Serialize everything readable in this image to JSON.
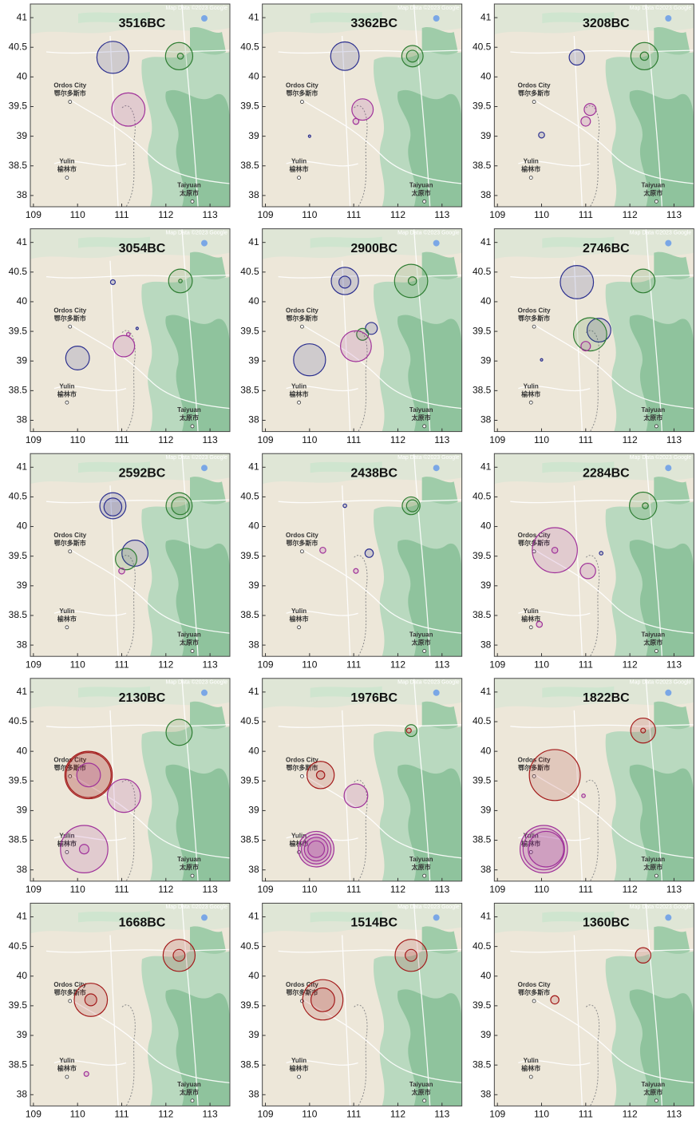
{
  "map": {
    "attribution": "Map Data ©2023 Google",
    "places": [
      {
        "name": "Ordos City",
        "local": "鄂尔多斯市",
        "x": 109.83,
        "y": 39.58
      },
      {
        "name": "Yulin",
        "local": "榆林市",
        "x": 109.76,
        "y": 38.3
      },
      {
        "name": "Taiyuan",
        "local": "太原市",
        "x": 112.6,
        "y": 37.9
      }
    ]
  },
  "chart_data": [
    {
      "type": "scatter",
      "title": "3516BC",
      "xlim": [
        108.93,
        113.45
      ],
      "ylim": [
        37.81,
        41.23
      ],
      "xticks": [
        109,
        110,
        111,
        112,
        113
      ],
      "yticks": [
        38,
        38.5,
        39,
        39.5,
        40,
        40.5,
        41
      ],
      "series": [
        {
          "color": "#2b2f8f",
          "x": [
            110.8
          ],
          "values": [
            40.33
          ],
          "sizes": [
            0.27
          ]
        },
        {
          "color": "#2e7d32",
          "x": [
            112.3,
            112.33
          ],
          "values": [
            40.35,
            40.35
          ],
          "sizes": [
            0.23,
            0.05
          ]
        },
        {
          "color": "#a0329a",
          "x": [
            111.15
          ],
          "values": [
            39.45
          ],
          "sizes": [
            0.28
          ]
        }
      ]
    },
    {
      "type": "scatter",
      "title": "3362BC",
      "xlim": [
        108.93,
        113.45
      ],
      "ylim": [
        37.81,
        41.23
      ],
      "xticks": [
        109,
        110,
        111,
        112,
        113
      ],
      "yticks": [
        38,
        38.5,
        39,
        39.5,
        40,
        40.5,
        41
      ],
      "series": [
        {
          "color": "#2b2f8f",
          "x": [
            110.8,
            110.0
          ],
          "values": [
            40.35,
            39.0
          ],
          "sizes": [
            0.24,
            0.02
          ]
        },
        {
          "color": "#2e7d32",
          "x": [
            112.33,
            112.33
          ],
          "values": [
            40.35,
            40.35
          ],
          "sizes": [
            0.18,
            0.1
          ]
        },
        {
          "color": "#a0329a",
          "x": [
            111.2,
            111.05
          ],
          "values": [
            39.45,
            39.25
          ],
          "sizes": [
            0.18,
            0.05
          ]
        }
      ]
    },
    {
      "type": "scatter",
      "title": "3208BC",
      "xlim": [
        108.93,
        113.45
      ],
      "ylim": [
        37.81,
        41.23
      ],
      "xticks": [
        109,
        110,
        111,
        112,
        113
      ],
      "yticks": [
        38,
        38.5,
        39,
        39.5,
        40,
        40.5,
        41
      ],
      "series": [
        {
          "color": "#2b2f8f",
          "x": [
            110.8,
            110.0
          ],
          "values": [
            40.33,
            39.02
          ],
          "sizes": [
            0.13,
            0.05
          ]
        },
        {
          "color": "#2e7d32",
          "x": [
            112.33,
            112.33
          ],
          "values": [
            40.35,
            40.35
          ],
          "sizes": [
            0.23,
            0.07
          ]
        },
        {
          "color": "#a0329a",
          "x": [
            111.1,
            111.0
          ],
          "values": [
            39.45,
            39.25
          ],
          "sizes": [
            0.1,
            0.08
          ]
        }
      ]
    },
    {
      "type": "scatter",
      "title": "3054BC",
      "xlim": [
        108.93,
        113.45
      ],
      "ylim": [
        37.81,
        41.23
      ],
      "xticks": [
        109,
        110,
        111,
        112,
        113
      ],
      "yticks": [
        38,
        38.5,
        39,
        39.5,
        40,
        40.5,
        41
      ],
      "series": [
        {
          "color": "#2b2f8f",
          "x": [
            110.8,
            110.0,
            111.35
          ],
          "values": [
            40.33,
            39.05,
            39.55
          ],
          "sizes": [
            0.04,
            0.2,
            0.02
          ]
        },
        {
          "color": "#2e7d32",
          "x": [
            112.33,
            112.33
          ],
          "values": [
            40.35,
            40.35
          ],
          "sizes": [
            0.2,
            0.03
          ]
        },
        {
          "color": "#a0329a",
          "x": [
            111.05,
            111.15
          ],
          "values": [
            39.25,
            39.45
          ],
          "sizes": [
            0.18,
            0.03
          ]
        }
      ]
    },
    {
      "type": "scatter",
      "title": "2900BC",
      "xlim": [
        108.93,
        113.45
      ],
      "ylim": [
        37.81,
        41.23
      ],
      "xticks": [
        109,
        110,
        111,
        112,
        113
      ],
      "yticks": [
        38,
        38.5,
        39,
        39.5,
        40,
        40.5,
        41
      ],
      "series": [
        {
          "color": "#2b2f8f",
          "x": [
            110.8,
            110.8,
            110.0,
            111.4
          ],
          "values": [
            40.35,
            40.33,
            39.02,
            39.55
          ],
          "sizes": [
            0.23,
            0.1,
            0.27,
            0.1
          ]
        },
        {
          "color": "#2e7d32",
          "x": [
            112.3,
            112.33,
            111.2
          ],
          "values": [
            40.35,
            40.35,
            39.45
          ],
          "sizes": [
            0.28,
            0.07,
            0.1
          ]
        },
        {
          "color": "#a0329a",
          "x": [
            111.05
          ],
          "values": [
            39.25
          ],
          "sizes": [
            0.26
          ]
        }
      ]
    },
    {
      "type": "scatter",
      "title": "2746BC",
      "xlim": [
        108.93,
        113.45
      ],
      "ylim": [
        37.81,
        41.23
      ],
      "xticks": [
        109,
        110,
        111,
        112,
        113
      ],
      "yticks": [
        38,
        38.5,
        39,
        39.5,
        40,
        40.5,
        41
      ],
      "series": [
        {
          "color": "#2b2f8f",
          "x": [
            110.8,
            111.3,
            110.0
          ],
          "values": [
            40.33,
            39.52,
            39.02
          ],
          "sizes": [
            0.28,
            0.2,
            0.02
          ]
        },
        {
          "color": "#2e7d32",
          "x": [
            112.3,
            111.1
          ],
          "values": [
            40.35,
            39.45
          ],
          "sizes": [
            0.2,
            0.28
          ]
        },
        {
          "color": "#a0329a",
          "x": [
            111.0
          ],
          "values": [
            39.25
          ],
          "sizes": [
            0.08
          ]
        }
      ]
    },
    {
      "type": "scatter",
      "title": "2592BC",
      "xlim": [
        108.93,
        113.45
      ],
      "ylim": [
        37.81,
        41.23
      ],
      "xticks": [
        109,
        110,
        111,
        112,
        113
      ],
      "yticks": [
        38,
        38.5,
        39,
        39.5,
        40,
        40.5,
        41
      ],
      "series": [
        {
          "color": "#2b2f8f",
          "x": [
            110.8,
            110.8,
            111.3
          ],
          "values": [
            40.35,
            40.33,
            39.55
          ],
          "sizes": [
            0.22,
            0.15,
            0.22
          ]
        },
        {
          "color": "#2e7d32",
          "x": [
            112.3,
            112.33,
            111.1
          ],
          "values": [
            40.35,
            40.35,
            39.45
          ],
          "sizes": [
            0.22,
            0.15,
            0.18
          ]
        },
        {
          "color": "#a0329a",
          "x": [
            111.0
          ],
          "values": [
            39.25
          ],
          "sizes": [
            0.05
          ]
        }
      ]
    },
    {
      "type": "scatter",
      "title": "2438BC",
      "xlim": [
        108.93,
        113.45
      ],
      "ylim": [
        37.81,
        41.23
      ],
      "xticks": [
        109,
        110,
        111,
        112,
        113
      ],
      "yticks": [
        38,
        38.5,
        39,
        39.5,
        40,
        40.5,
        41
      ],
      "series": [
        {
          "color": "#2b2f8f",
          "x": [
            110.8,
            111.35
          ],
          "values": [
            40.35,
            39.55
          ],
          "sizes": [
            0.03,
            0.07
          ]
        },
        {
          "color": "#2e7d32",
          "x": [
            112.3,
            112.33
          ],
          "values": [
            40.35,
            40.35
          ],
          "sizes": [
            0.15,
            0.1
          ]
        },
        {
          "color": "#a0329a",
          "x": [
            110.3,
            111.05
          ],
          "values": [
            39.6,
            39.25
          ],
          "sizes": [
            0.05,
            0.04
          ]
        }
      ]
    },
    {
      "type": "scatter",
      "title": "2284BC",
      "xlim": [
        108.93,
        113.45
      ],
      "ylim": [
        37.81,
        41.23
      ],
      "xticks": [
        109,
        110,
        111,
        112,
        113
      ],
      "yticks": [
        38,
        38.5,
        39,
        39.5,
        40,
        40.5,
        41
      ],
      "series": [
        {
          "color": "#2b2f8f",
          "x": [
            111.35
          ],
          "values": [
            39.55
          ],
          "sizes": [
            0.03
          ]
        },
        {
          "color": "#2e7d32",
          "x": [
            112.3,
            112.35
          ],
          "values": [
            40.35,
            40.35
          ],
          "sizes": [
            0.23,
            0.05
          ]
        },
        {
          "color": "#a0329a",
          "x": [
            110.3,
            110.3,
            111.05,
            109.95
          ],
          "values": [
            39.6,
            39.6,
            39.25,
            38.35
          ],
          "sizes": [
            0.38,
            0.05,
            0.13,
            0.05
          ]
        }
      ]
    },
    {
      "type": "scatter",
      "title": "2130BC",
      "xlim": [
        108.93,
        113.45
      ],
      "ylim": [
        37.81,
        41.23
      ],
      "xticks": [
        109,
        110,
        111,
        112,
        113
      ],
      "yticks": [
        38,
        38.5,
        39,
        39.5,
        40,
        40.5,
        41
      ],
      "series": [
        {
          "color": "#2e7d32",
          "x": [
            112.3
          ],
          "values": [
            40.32
          ],
          "sizes": [
            0.22
          ]
        },
        {
          "color": "#a31a1a",
          "x": [
            110.25,
            110.25
          ],
          "values": [
            39.6,
            39.6
          ],
          "sizes": [
            0.4,
            0.38
          ]
        },
        {
          "color": "#a0329a",
          "x": [
            110.25,
            111.05,
            110.15,
            110.15
          ],
          "values": [
            39.6,
            39.25,
            38.35,
            38.35
          ],
          "sizes": [
            0.2,
            0.28,
            0.4,
            0.08
          ]
        }
      ]
    },
    {
      "type": "scatter",
      "title": "1976BC",
      "xlim": [
        108.93,
        113.45
      ],
      "ylim": [
        37.81,
        41.23
      ],
      "xticks": [
        109,
        110,
        111,
        112,
        113
      ],
      "yticks": [
        38,
        38.5,
        39,
        39.5,
        40,
        40.5,
        41
      ],
      "series": [
        {
          "color": "#2e7d32",
          "x": [
            112.3
          ],
          "values": [
            40.35
          ],
          "sizes": [
            0.1
          ]
        },
        {
          "color": "#a31a1a",
          "x": [
            112.25,
            110.25,
            110.25
          ],
          "values": [
            40.35,
            39.6,
            39.6
          ],
          "sizes": [
            0.04,
            0.23,
            0.07
          ]
        },
        {
          "color": "#a0329a",
          "x": [
            111.05,
            110.15,
            110.15,
            110.15,
            110.15
          ],
          "values": [
            39.25,
            38.35,
            38.35,
            38.35,
            38.35
          ],
          "sizes": [
            0.2,
            0.3,
            0.25,
            0.2,
            0.14
          ]
        }
      ]
    },
    {
      "type": "scatter",
      "title": "1822BC",
      "xlim": [
        108.93,
        113.45
      ],
      "ylim": [
        37.81,
        41.23
      ],
      "xticks": [
        109,
        110,
        111,
        112,
        113
      ],
      "yticks": [
        38,
        38.5,
        39,
        39.5,
        40,
        40.5,
        41
      ],
      "series": [
        {
          "color": "#a31a1a",
          "x": [
            112.3,
            112.3,
            110.3
          ],
          "values": [
            40.35,
            40.35,
            39.6
          ],
          "sizes": [
            0.21,
            0.04,
            0.43
          ]
        },
        {
          "color": "#a0329a",
          "x": [
            110.95,
            110.05,
            110.05,
            110.1
          ],
          "values": [
            39.25,
            38.35,
            38.35,
            38.35
          ],
          "sizes": [
            0.03,
            0.4,
            0.35,
            0.3
          ]
        }
      ]
    },
    {
      "type": "scatter",
      "title": "1668BC",
      "xlim": [
        108.93,
        113.45
      ],
      "ylim": [
        37.81,
        41.23
      ],
      "xticks": [
        109,
        110,
        111,
        112,
        113
      ],
      "yticks": [
        38,
        38.5,
        39,
        39.5,
        40,
        40.5,
        41
      ],
      "series": [
        {
          "color": "#a31a1a",
          "x": [
            112.3,
            112.3,
            110.3,
            110.3
          ],
          "values": [
            40.35,
            40.35,
            39.6,
            39.6
          ],
          "sizes": [
            0.27,
            0.1,
            0.28,
            0.1
          ]
        },
        {
          "color": "#a0329a",
          "x": [
            110.2
          ],
          "values": [
            38.35
          ],
          "sizes": [
            0.04
          ]
        }
      ]
    },
    {
      "type": "scatter",
      "title": "1514BC",
      "xlim": [
        108.93,
        113.45
      ],
      "ylim": [
        37.81,
        41.23
      ],
      "xticks": [
        109,
        110,
        111,
        112,
        113
      ],
      "yticks": [
        38,
        38.5,
        39,
        39.5,
        40,
        40.5,
        41
      ],
      "series": [
        {
          "color": "#a31a1a",
          "x": [
            112.3,
            112.3,
            110.3,
            110.3
          ],
          "values": [
            40.35,
            40.35,
            39.6,
            39.6
          ],
          "sizes": [
            0.27,
            0.1,
            0.34,
            0.2
          ]
        }
      ]
    },
    {
      "type": "scatter",
      "title": "1360BC",
      "xlim": [
        108.93,
        113.45
      ],
      "ylim": [
        37.81,
        41.23
      ],
      "xticks": [
        109,
        110,
        111,
        112,
        113
      ],
      "yticks": [
        38,
        38.5,
        39,
        39.5,
        40,
        40.5,
        41
      ],
      "series": [
        {
          "color": "#a31a1a",
          "x": [
            112.3,
            110.3
          ],
          "values": [
            40.35,
            39.6
          ],
          "sizes": [
            0.13,
            0.07
          ]
        }
      ]
    }
  ]
}
